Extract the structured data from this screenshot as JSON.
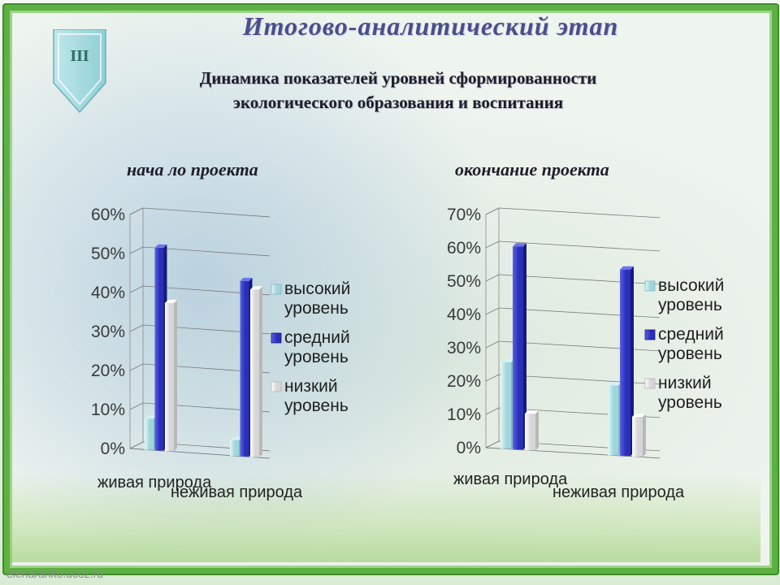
{
  "slide": {
    "badge": "III",
    "title": "Итогово-аналитический этап",
    "subtitle_line1": "Динамика показателей уровней сформированности",
    "subtitle_line2": "экологического образования и воспитания",
    "footer": "elenaranko.ucoz.ru"
  },
  "colors": {
    "frame": "#5fb043",
    "high": "#9fd6dc",
    "medium": "#2a2fb8",
    "low": "#f2f2f2",
    "title": "#4a4f8a"
  },
  "chart_data": [
    {
      "type": "bar",
      "title": "нача ло проекта",
      "categories": [
        "живая природа",
        "неживая природа"
      ],
      "series": [
        {
          "name": "высокий уровень",
          "values": [
            8,
            4
          ]
        },
        {
          "name": "средний уровень",
          "values": [
            52,
            45
          ]
        },
        {
          "name": "низкий уровень",
          "values": [
            38,
            43
          ]
        }
      ],
      "ylim": [
        0,
        60
      ],
      "yticks": [
        "0%",
        "10%",
        "20%",
        "30%",
        "40%",
        "50%",
        "60%"
      ],
      "grid": true,
      "legend": "right"
    },
    {
      "type": "bar",
      "title": "окончание проекта",
      "categories": [
        "живая природа",
        "неживая природа"
      ],
      "series": [
        {
          "name": "высокий уровень",
          "values": [
            26,
            21
          ]
        },
        {
          "name": "средний уровень",
          "values": [
            61,
            56
          ]
        },
        {
          "name": "низкий уровень",
          "values": [
            11,
            12
          ]
        }
      ],
      "ylim": [
        0,
        70
      ],
      "yticks": [
        "0%",
        "10%",
        "20%",
        "30%",
        "40%",
        "50%",
        "60%",
        "70%"
      ],
      "grid": true,
      "legend": "right"
    }
  ]
}
